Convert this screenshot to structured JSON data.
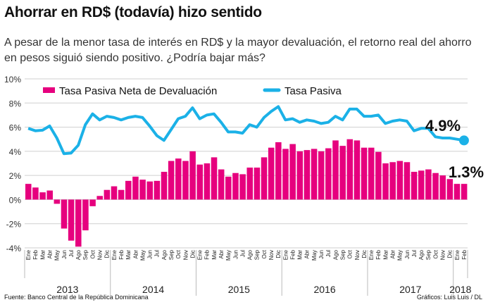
{
  "title": "Ahorrar en RD$ (todavía) hizo sentido",
  "subtitle": "A pesar de la menor tasa de interés en RD$ y la mayor devaluación, el retorno real del ahorro en pesos siguió siendo positivo. ¿Podría bajar más?",
  "source": "Fuente: Banco Central de la República Dominicana",
  "credit": "Gráficos: Luis Luis / DL",
  "chart_data": {
    "type": "bar+line",
    "ylim": [
      -4,
      10
    ],
    "yticks": [
      "10%",
      "8%",
      "6%",
      "4%",
      "2%",
      "0%",
      "-2%",
      "-4%"
    ],
    "ytick_values": [
      10,
      8,
      6,
      4,
      2,
      0,
      -2,
      -4
    ],
    "grid": true,
    "legend_placement": "top",
    "months": [
      "Ene",
      "Feb",
      "Mar",
      "Abr",
      "May",
      "Jun",
      "Jul",
      "Ago",
      "Sep",
      "Oct",
      "Nov",
      "Dic"
    ],
    "years": [
      {
        "label": "2013",
        "months": 12
      },
      {
        "label": "2014",
        "months": 12
      },
      {
        "label": "2015",
        "months": 12
      },
      {
        "label": "2016",
        "months": 12
      },
      {
        "label": "2017",
        "months": 12
      },
      {
        "label": "2018",
        "months": 2
      }
    ],
    "series": [
      {
        "name": "Tasa Pasiva Neta de Devaluación",
        "type": "bar",
        "color": "#e6007e",
        "values": [
          1.3,
          1.0,
          0.6,
          0.75,
          -0.35,
          -2.4,
          -3.4,
          -3.9,
          -2.55,
          -0.55,
          0.3,
          0.8,
          1.1,
          0.8,
          1.55,
          1.9,
          1.65,
          1.5,
          1.55,
          2.3,
          3.2,
          3.4,
          3.2,
          4.0,
          2.9,
          3.0,
          3.5,
          2.5,
          1.9,
          2.2,
          2.1,
          2.65,
          2.65,
          3.5,
          4.3,
          4.75,
          4.2,
          4.6,
          4.0,
          4.1,
          4.2,
          4.0,
          4.25,
          4.9,
          4.45,
          5.0,
          4.9,
          4.3,
          4.3,
          3.95,
          3.0,
          3.1,
          3.2,
          3.1,
          2.3,
          2.4,
          2.5,
          2.2,
          2.0,
          1.7,
          1.3,
          1.3
        ]
      },
      {
        "name": "Tasa Pasiva",
        "type": "line",
        "color": "#1bb1e7",
        "values": [
          5.9,
          5.7,
          5.75,
          6.1,
          5.1,
          3.8,
          3.85,
          4.5,
          6.2,
          7.1,
          6.6,
          6.9,
          6.8,
          6.6,
          6.8,
          6.9,
          6.8,
          6.1,
          5.3,
          4.9,
          5.8,
          6.7,
          6.9,
          7.6,
          6.7,
          7.0,
          7.1,
          6.4,
          5.6,
          5.6,
          5.5,
          6.2,
          6.0,
          6.8,
          7.3,
          7.7,
          6.6,
          6.7,
          6.4,
          6.6,
          6.5,
          6.3,
          6.4,
          6.9,
          6.6,
          7.5,
          7.5,
          6.9,
          6.9,
          7.0,
          6.3,
          6.5,
          6.6,
          6.5,
          5.7,
          5.9,
          5.9,
          5.2,
          5.1,
          5.1,
          5.0,
          4.9
        ]
      }
    ],
    "annotations": {
      "line_last": "4.9%",
      "bar_last": "1.3%"
    }
  }
}
